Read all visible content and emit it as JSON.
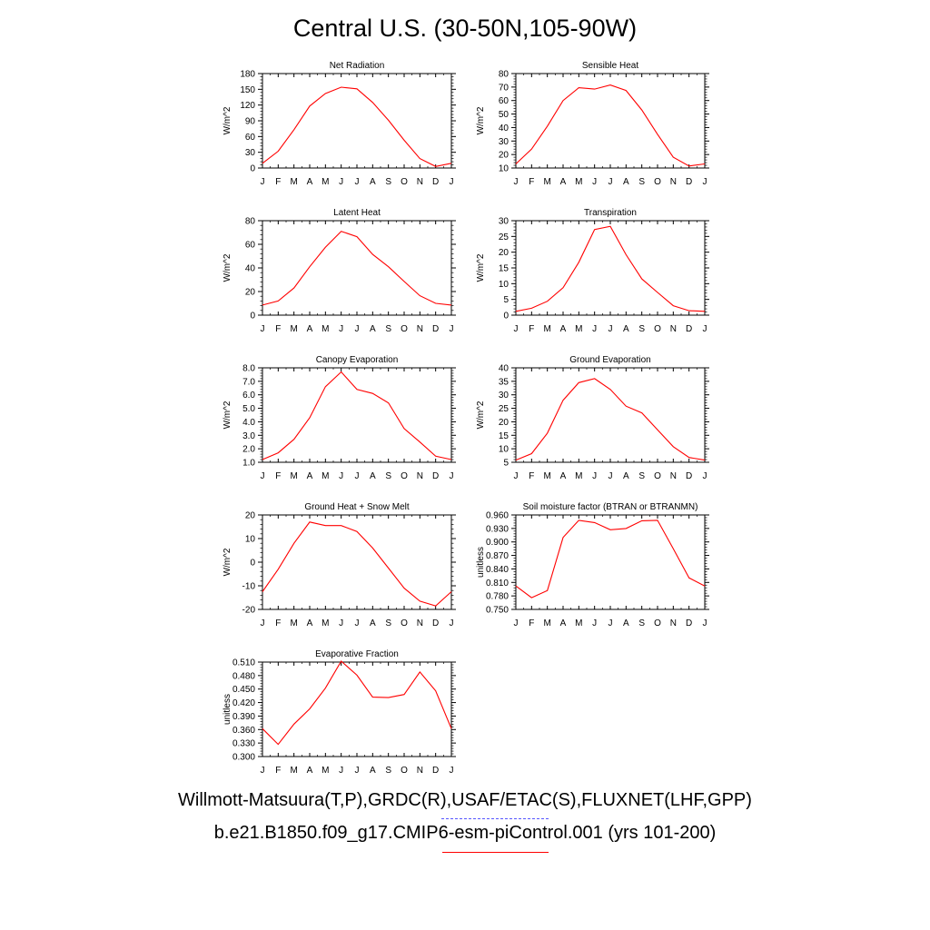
{
  "title": "Central U.S. (30-50N,105-90W)",
  "legend": {
    "obs_label": "Willmott-Matsuura(T,P),GRDC(R),USAF/ETAC(S),FLUXNET(LHF,GPP)",
    "obs_color": "#5555ff",
    "model_label": "b.e21.B1850.f09_g17.CMIP6-esm-piControl.001 (yrs 101-200)",
    "model_color": "#ff0000"
  },
  "chart_data": [
    {
      "type": "line",
      "title": "Net Radiation",
      "ylabel": "W/m^2",
      "x": [
        "J",
        "F",
        "M",
        "A",
        "M",
        "J",
        "J",
        "A",
        "S",
        "O",
        "N",
        "D",
        "J"
      ],
      "yticks": [
        "0",
        "30",
        "60",
        "90",
        "120",
        "150",
        "180"
      ],
      "ylim": [
        0,
        180
      ],
      "series": [
        {
          "values": [
            9,
            32,
            73,
            118,
            142,
            154,
            151,
            125,
            91,
            53,
            18,
            3,
            9
          ]
        }
      ]
    },
    {
      "type": "line",
      "title": "Sensible Heat",
      "ylabel": "W/m^2",
      "x": [
        "J",
        "F",
        "M",
        "A",
        "M",
        "J",
        "J",
        "A",
        "S",
        "O",
        "N",
        "D",
        "J"
      ],
      "yticks": [
        "10",
        "20",
        "30",
        "40",
        "50",
        "60",
        "70",
        "80"
      ],
      "ylim": [
        10,
        80
      ],
      "series": [
        {
          "values": [
            13,
            24,
            41,
            60,
            69.5,
            68.5,
            71.5,
            67.5,
            53,
            35,
            18,
            11.5,
            13
          ]
        }
      ]
    },
    {
      "type": "line",
      "title": "Latent Heat",
      "ylabel": "W/m^2",
      "x": [
        "J",
        "F",
        "M",
        "A",
        "M",
        "J",
        "J",
        "A",
        "S",
        "O",
        "N",
        "D",
        "J"
      ],
      "yticks": [
        "0",
        "20",
        "40",
        "60",
        "80"
      ],
      "ylim": [
        0,
        80
      ],
      "series": [
        {
          "values": [
            8.5,
            12,
            23,
            41,
            57.5,
            71,
            66.5,
            51.5,
            41,
            28.5,
            16.5,
            10,
            8.5
          ]
        }
      ]
    },
    {
      "type": "line",
      "title": "Transpiration",
      "ylabel": "W/m^2",
      "x": [
        "J",
        "F",
        "M",
        "A",
        "M",
        "J",
        "J",
        "A",
        "S",
        "O",
        "N",
        "D",
        "J"
      ],
      "yticks": [
        "0",
        "5",
        "10",
        "15",
        "20",
        "25",
        "30"
      ],
      "ylim": [
        0,
        30
      ],
      "series": [
        {
          "values": [
            1.2,
            2.2,
            4.4,
            8.7,
            16.8,
            27.2,
            28.2,
            19.2,
            11.5,
            7.2,
            3,
            1.4,
            1.2
          ]
        }
      ]
    },
    {
      "type": "line",
      "title": "Canopy Evaporation",
      "ylabel": "W/m^2",
      "x": [
        "J",
        "F",
        "M",
        "A",
        "M",
        "J",
        "J",
        "A",
        "S",
        "O",
        "N",
        "D",
        "J"
      ],
      "yticks": [
        "1.0",
        "2.0",
        "3.0",
        "4.0",
        "5.0",
        "6.0",
        "7.0",
        "8.0"
      ],
      "ylim": [
        1,
        8
      ],
      "series": [
        {
          "values": [
            1.2,
            1.7,
            2.7,
            4.3,
            6.6,
            7.7,
            6.4,
            6.1,
            5.4,
            3.5,
            2.5,
            1.45,
            1.2
          ]
        }
      ]
    },
    {
      "type": "line",
      "title": "Ground Evaporation",
      "ylabel": "W/m^2",
      "x": [
        "J",
        "F",
        "M",
        "A",
        "M",
        "J",
        "J",
        "A",
        "S",
        "O",
        "N",
        "D",
        "J"
      ],
      "yticks": [
        "5",
        "10",
        "15",
        "20",
        "25",
        "30",
        "35",
        "40"
      ],
      "ylim": [
        5,
        40
      ],
      "series": [
        {
          "values": [
            5.8,
            8.2,
            15.8,
            28,
            34.5,
            36,
            32,
            25.8,
            23.3,
            17,
            10.8,
            6.8,
            5.8
          ]
        }
      ]
    },
    {
      "type": "line",
      "title": "Ground Heat + Snow Melt",
      "ylabel": "W/m^2",
      "x": [
        "J",
        "F",
        "M",
        "A",
        "M",
        "J",
        "J",
        "A",
        "S",
        "O",
        "N",
        "D",
        "J"
      ],
      "yticks": [
        "-20",
        "-10",
        "0",
        "10",
        "20"
      ],
      "ylim": [
        -20,
        20
      ],
      "series": [
        {
          "values": [
            -12.5,
            -3,
            8,
            17,
            15.5,
            15.5,
            13,
            6,
            -2.5,
            -11,
            -16.5,
            -18.5,
            -12.5
          ]
        }
      ]
    },
    {
      "type": "line",
      "title": "Soil moisture factor (BTRAN or BTRANMN)",
      "ylabel": "unitless",
      "x": [
        "J",
        "F",
        "M",
        "A",
        "M",
        "J",
        "J",
        "A",
        "S",
        "O",
        "N",
        "D",
        "J"
      ],
      "yticks": [
        "0.750",
        "0.780",
        "0.810",
        "0.840",
        "0.870",
        "0.900",
        "0.930",
        "0.960"
      ],
      "ylim": [
        0.75,
        0.96
      ],
      "series": [
        {
          "values": [
            0.802,
            0.776,
            0.792,
            0.91,
            0.948,
            0.943,
            0.927,
            0.93,
            0.947,
            0.948,
            0.885,
            0.82,
            0.802
          ]
        }
      ]
    },
    {
      "type": "line",
      "title": "Evaporative Fraction",
      "ylabel": "unitless",
      "x": [
        "J",
        "F",
        "M",
        "A",
        "M",
        "J",
        "J",
        "A",
        "S",
        "O",
        "N",
        "D",
        "J"
      ],
      "yticks": [
        "0.300",
        "0.330",
        "0.360",
        "0.390",
        "0.420",
        "0.450",
        "0.480",
        "0.510"
      ],
      "ylim": [
        0.3,
        0.51
      ],
      "series": [
        {
          "values": [
            0.362,
            0.327,
            0.372,
            0.406,
            0.452,
            0.512,
            0.481,
            0.432,
            0.431,
            0.438,
            0.488,
            0.446,
            0.362
          ]
        }
      ]
    }
  ]
}
